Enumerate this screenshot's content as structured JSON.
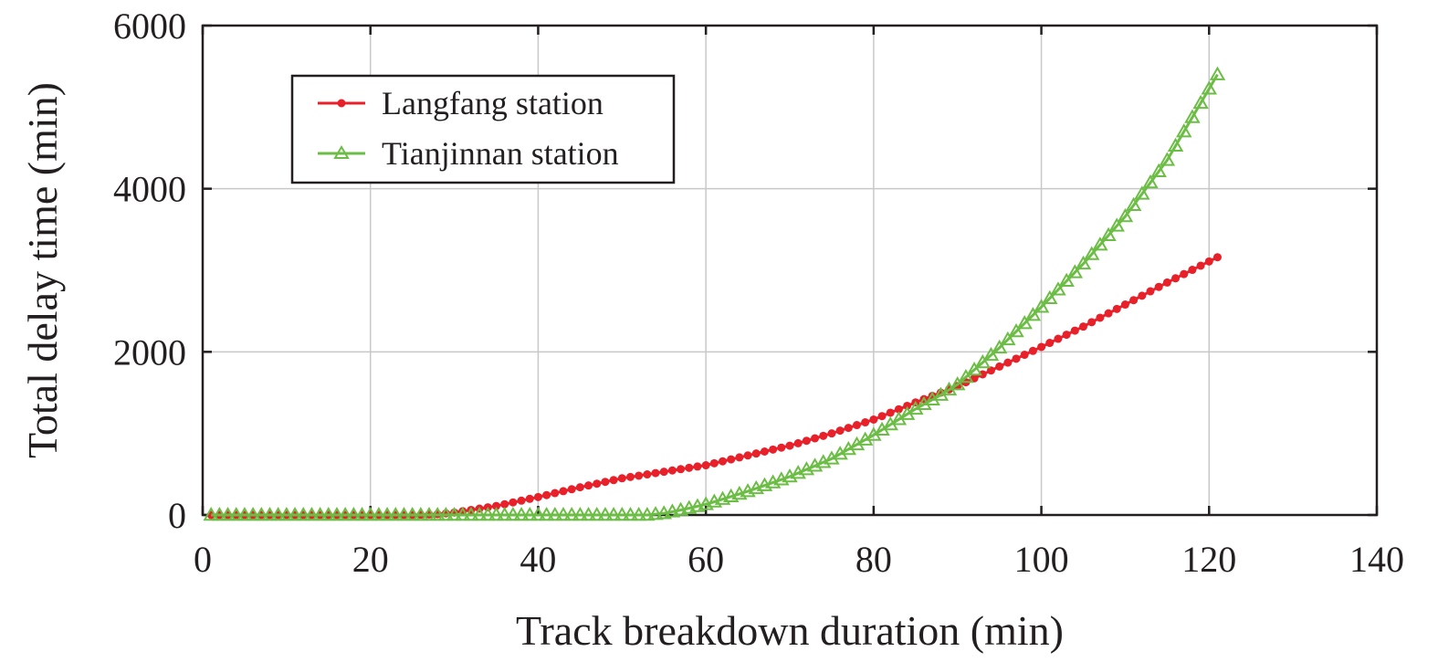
{
  "chart_data": {
    "type": "line",
    "xlabel": "Track breakdown duration (min)",
    "ylabel": "Total delay time (min)",
    "xlim": [
      0,
      140
    ],
    "ylim": [
      0,
      6000
    ],
    "xticks": [
      0,
      20,
      40,
      60,
      80,
      100,
      120,
      140
    ],
    "yticks": [
      0,
      2000,
      4000,
      6000
    ],
    "xtick_labels": [
      "0",
      "20",
      "40",
      "60",
      "80",
      "100",
      "120",
      "140"
    ],
    "ytick_labels": [
      "0",
      "2000",
      "4000",
      "6000"
    ],
    "grid": true,
    "legend_position": "top-left",
    "series": [
      {
        "name": "Langfang station",
        "color": "#e8202a",
        "marker": "circle",
        "x": [
          1,
          10,
          20,
          25,
          28,
          30,
          35,
          40,
          45,
          50,
          55,
          60,
          65,
          70,
          75,
          80,
          85,
          90,
          95,
          100,
          105,
          110,
          115,
          121
        ],
        "y": [
          0,
          0,
          0,
          0,
          10,
          30,
          110,
          220,
          340,
          450,
          530,
          610,
          730,
          850,
          1000,
          1170,
          1380,
          1580,
          1820,
          2060,
          2310,
          2580,
          2850,
          3160
        ]
      },
      {
        "name": "Tianjinnan station",
        "color": "#6cbd45",
        "marker": "triangle",
        "x": [
          1,
          10,
          20,
          30,
          40,
          50,
          53,
          55,
          57,
          60,
          65,
          70,
          75,
          80,
          85,
          88,
          90,
          95,
          100,
          105,
          110,
          115,
          121
        ],
        "y": [
          0,
          0,
          0,
          0,
          0,
          0,
          0,
          20,
          60,
          130,
          290,
          470,
          690,
          980,
          1300,
          1470,
          1600,
          2050,
          2550,
          3080,
          3660,
          4350,
          5400
        ]
      }
    ]
  }
}
